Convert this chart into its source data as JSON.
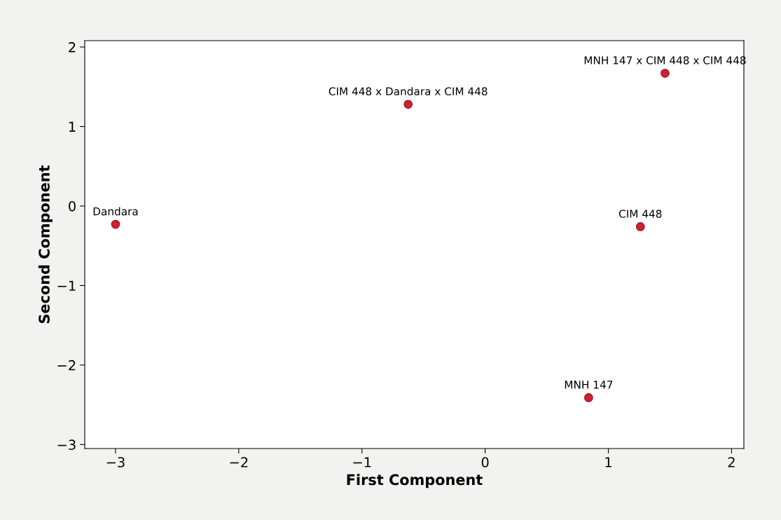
{
  "chart_data": {
    "type": "scatter",
    "xlabel": "First Component",
    "ylabel": "Second Component",
    "x": [
      -3.0,
      -0.625,
      1.46,
      1.26,
      0.84
    ],
    "series": [
      {
        "color": "#cc2233",
        "values": [
          -0.23,
          1.28,
          1.67,
          -0.26,
          -2.41
        ]
      }
    ],
    "annotations": [
      {
        "text": "Dandara",
        "x": -3.0,
        "y": -0.23
      },
      {
        "text": "CIM 448 x Dandara x CIM 448",
        "x": -0.625,
        "y": 1.28
      },
      {
        "text": "MNH 147 x CIM 448 x CIM 448",
        "x": 1.46,
        "y": 1.67
      },
      {
        "text": "CIM 448",
        "x": 1.26,
        "y": -0.26
      },
      {
        "text": "MNH 147",
        "x": 0.84,
        "y": -2.41
      }
    ],
    "xlim": [
      -3.25,
      2.1
    ],
    "ylim": [
      -3.05,
      2.08
    ],
    "xticks": [
      -3,
      -2,
      -1,
      0,
      1,
      2
    ],
    "yticks": [
      -3,
      -2,
      -1,
      0,
      1,
      2
    ],
    "marker": "circle",
    "grid": false,
    "legend": false
  }
}
